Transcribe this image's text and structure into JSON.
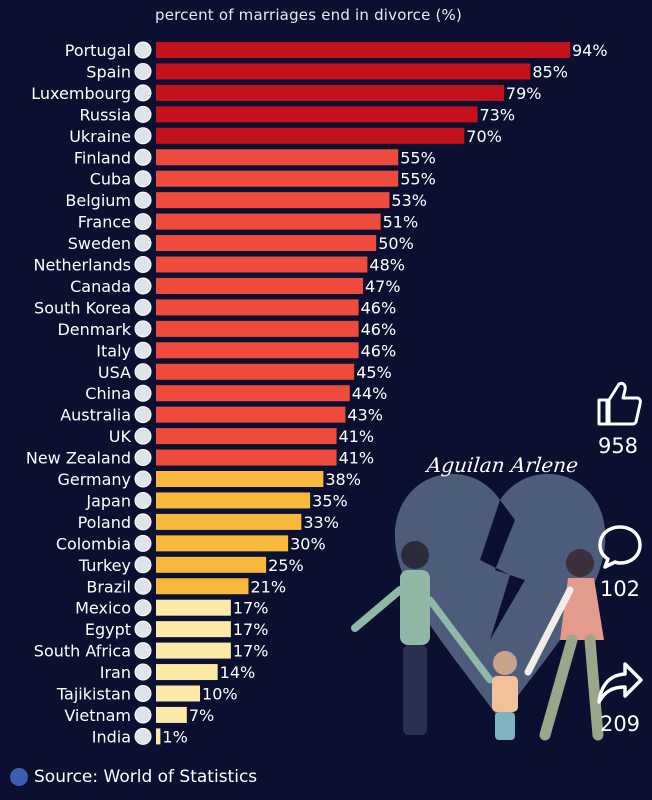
{
  "chart_data": {
    "type": "bar",
    "orientation": "horizontal",
    "title": "percent of marriages end in divorce (%)",
    "xlim": [
      0,
      100
    ],
    "categories": [
      "Portugal",
      "Spain",
      "Luxembourg",
      "Russia",
      "Ukraine",
      "Finland",
      "Cuba",
      "Belgium",
      "France",
      "Sweden",
      "Netherlands",
      "Canada",
      "South Korea",
      "Denmark",
      "Italy",
      "USA",
      "China",
      "Australia",
      "UK",
      "New Zealand",
      "Germany",
      "Japan",
      "Poland",
      "Colombia",
      "Turkey",
      "Brazil",
      "Mexico",
      "Egypt",
      "South Africa",
      "Iran",
      "Tajikistan",
      "Vietnam",
      "India"
    ],
    "values": [
      94,
      85,
      79,
      73,
      70,
      55,
      55,
      53,
      51,
      50,
      48,
      47,
      46,
      46,
      46,
      45,
      44,
      43,
      41,
      41,
      38,
      35,
      33,
      30,
      25,
      21,
      17,
      17,
      17,
      14,
      10,
      7,
      1
    ],
    "value_labels": [
      "94%",
      "85%",
      "79%",
      "73%",
      "70%",
      "55%",
      "55%",
      "53%",
      "51%",
      "50%",
      "48%",
      "47%",
      "46%",
      "46%",
      "46%",
      "45%",
      "44%",
      "43%",
      "41%",
      "41%",
      "38%",
      "35%",
      "33%",
      "30%",
      "25%",
      "21%",
      "17%",
      "17%",
      "17%",
      "14%",
      "10%",
      "7%",
      "1%"
    ],
    "flag_icons": [
      "portugal-flag-icon",
      "spain-flag-icon",
      "luxembourg-flag-icon",
      "russia-flag-icon",
      "ukraine-flag-icon",
      "finland-flag-icon",
      "cuba-flag-icon",
      "belgium-flag-icon",
      "france-flag-icon",
      "sweden-flag-icon",
      "netherlands-flag-icon",
      "canada-flag-icon",
      "south-korea-flag-icon",
      "denmark-flag-icon",
      "italy-flag-icon",
      "usa-flag-icon",
      "china-flag-icon",
      "australia-flag-icon",
      "uk-flag-icon",
      "new-zealand-flag-icon",
      "germany-flag-icon",
      "japan-flag-icon",
      "poland-flag-icon",
      "colombia-flag-icon",
      "turkey-flag-icon",
      "brazil-flag-icon",
      "mexico-flag-icon",
      "egypt-flag-icon",
      "south-africa-flag-icon",
      "iran-flag-icon",
      "tajikistan-flag-icon",
      "vietnam-flag-icon",
      "india-flag-icon"
    ],
    "colors": {
      "high": "#c4121d",
      "mid": "#ee4b3c",
      "low_mid": "#f6b93c",
      "low": "#fbeaa8"
    }
  },
  "overlay": {
    "watermark": "Aguilan Arlene",
    "likes": "958",
    "comments": "102",
    "shares": "209"
  },
  "footer": {
    "source": "Source: World of Statistics"
  },
  "colors": {
    "background": "#0b1030"
  }
}
